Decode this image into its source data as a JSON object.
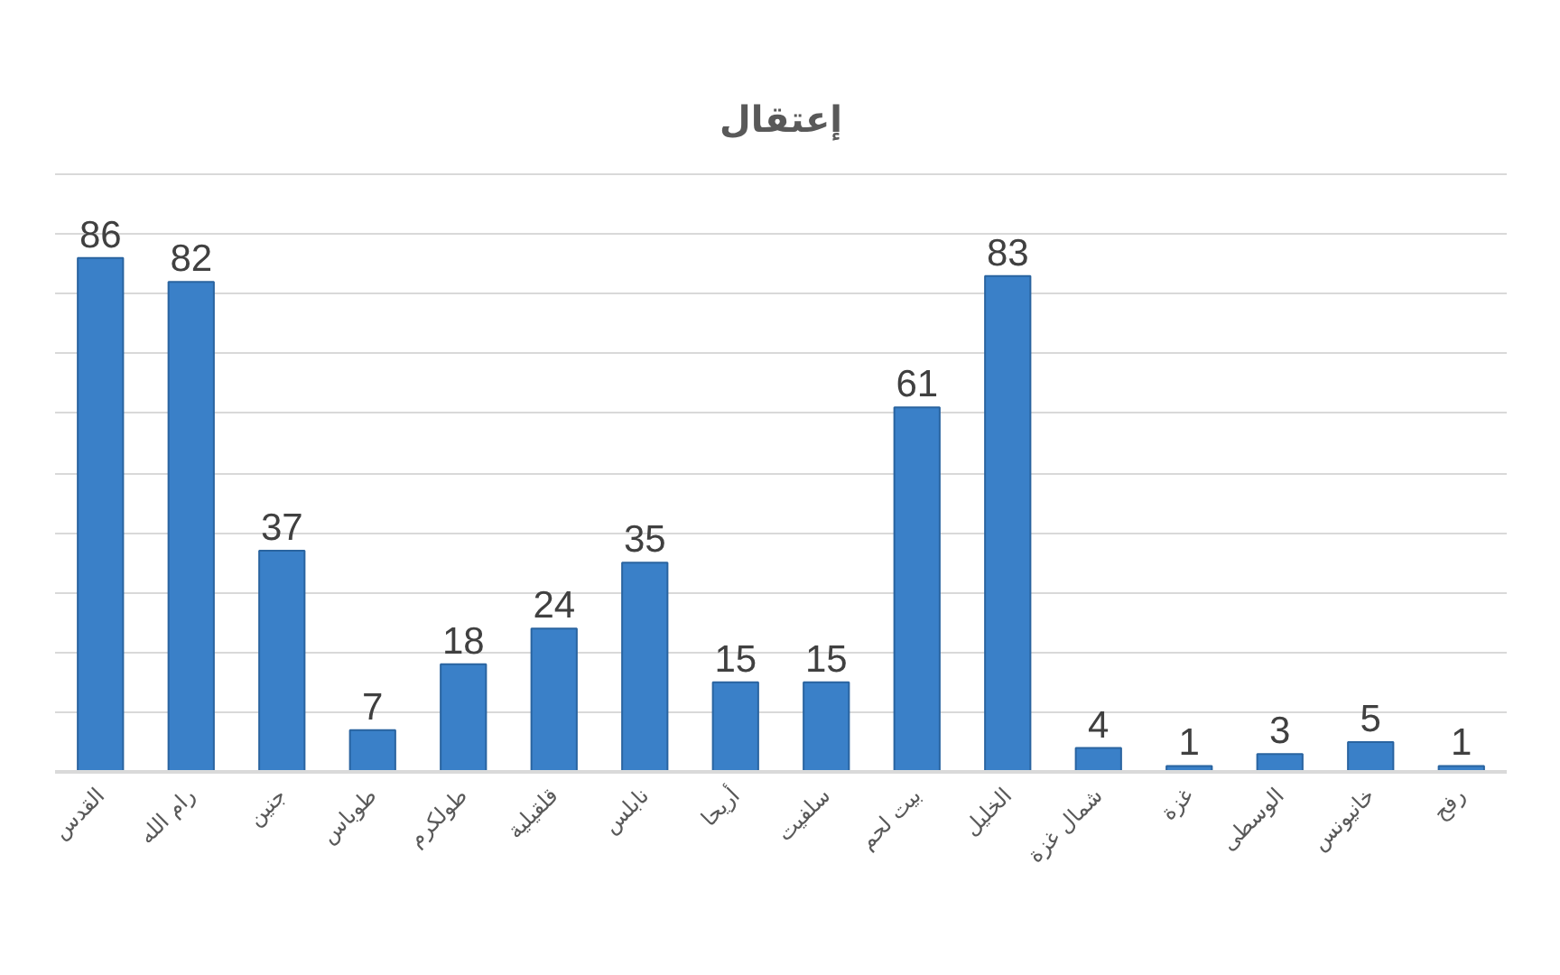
{
  "chart_data": {
    "type": "bar",
    "title": "إعتقال",
    "categories": [
      "القدس",
      "رام الله",
      "جنين",
      "طوباس",
      "طولكرم",
      "قلقيلية",
      "نابلس",
      "أريحا",
      "سلفيت",
      "بيت لحم",
      "الخليل",
      "شمال غزة",
      "غزة",
      "الوسطى",
      "خانيونس",
      "رفح"
    ],
    "values": [
      86,
      82,
      37,
      7,
      18,
      24,
      35,
      15,
      15,
      61,
      83,
      4,
      1,
      3,
      5,
      1
    ],
    "color": "#3a80c8",
    "data_labels": true,
    "grid": "y",
    "tick_labels": "x"
  }
}
